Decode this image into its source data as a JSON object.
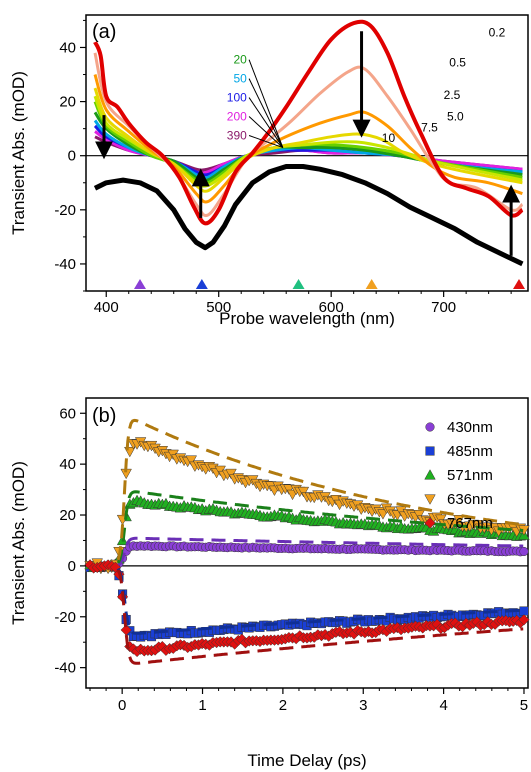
{
  "chart_data": [
    {
      "id": "a",
      "type": "line",
      "panel_label": "(a)",
      "xlabel": "Probe wavelength (nm)",
      "ylabel": "Transient Abs. (mOD)",
      "xlim": [
        382,
        775
      ],
      "ylim": [
        -50,
        52
      ],
      "xticks": [
        400,
        500,
        600,
        700
      ],
      "yticks": [
        -40,
        -20,
        0,
        20,
        40
      ],
      "zero_line": true,
      "steady_state_curve": {
        "color": "#000000",
        "points": [
          [
            390,
            -12
          ],
          [
            400,
            -10
          ],
          [
            415,
            -9
          ],
          [
            430,
            -10
          ],
          [
            445,
            -13
          ],
          [
            460,
            -20
          ],
          [
            470,
            -27
          ],
          [
            480,
            -32
          ],
          [
            488,
            -34
          ],
          [
            495,
            -32
          ],
          [
            505,
            -26
          ],
          [
            515,
            -18
          ],
          [
            530,
            -10
          ],
          [
            545,
            -6
          ],
          [
            560,
            -4
          ],
          [
            575,
            -4
          ],
          [
            590,
            -5
          ],
          [
            610,
            -7
          ],
          [
            630,
            -10
          ],
          [
            650,
            -14
          ],
          [
            670,
            -19
          ],
          [
            690,
            -23
          ],
          [
            710,
            -27
          ],
          [
            730,
            -32
          ],
          [
            750,
            -36
          ],
          [
            770,
            -40
          ]
        ]
      },
      "series": [
        {
          "name": "0.2",
          "color": "#e00000",
          "values": [
            [
              390,
              42
            ],
            [
              395,
              37
            ],
            [
              400,
              22
            ],
            [
              410,
              18
            ],
            [
              420,
              12
            ],
            [
              435,
              5
            ],
            [
              450,
              0
            ],
            [
              465,
              -8
            ],
            [
              478,
              -19
            ],
            [
              488,
              -25
            ],
            [
              500,
              -20
            ],
            [
              515,
              -6
            ],
            [
              530,
              1
            ],
            [
              545,
              9
            ],
            [
              560,
              18
            ],
            [
              580,
              31
            ],
            [
              600,
              43
            ],
            [
              620,
              49
            ],
            [
              635,
              48
            ],
            [
              650,
              38
            ],
            [
              665,
              22
            ],
            [
              680,
              8
            ],
            [
              700,
              -8
            ],
            [
              720,
              -12
            ],
            [
              740,
              -15
            ],
            [
              760,
              -22
            ],
            [
              770,
              -20
            ]
          ]
        },
        {
          "name": "0.5",
          "color": "#f4a58a",
          "values": [
            [
              390,
              38
            ],
            [
              400,
              20
            ],
            [
              420,
              11
            ],
            [
              440,
              3
            ],
            [
              460,
              -5
            ],
            [
              480,
              -18
            ],
            [
              490,
              -22
            ],
            [
              505,
              -14
            ],
            [
              525,
              -1
            ],
            [
              545,
              6
            ],
            [
              565,
              13
            ],
            [
              590,
              23
            ],
            [
              615,
              31
            ],
            [
              630,
              32
            ],
            [
              650,
              22
            ],
            [
              670,
              10
            ],
            [
              690,
              -3
            ],
            [
              705,
              -10
            ],
            [
              730,
              -12
            ],
            [
              760,
              -20
            ],
            [
              770,
              -18
            ]
          ]
        },
        {
          "name": "2.5",
          "color": "#ff9900",
          "values": [
            [
              390,
              30
            ],
            [
              400,
              17
            ],
            [
              420,
              9
            ],
            [
              440,
              2
            ],
            [
              460,
              -4
            ],
            [
              480,
              -14
            ],
            [
              490,
              -17
            ],
            [
              505,
              -11
            ],
            [
              525,
              -1
            ],
            [
              545,
              4
            ],
            [
              565,
              8
            ],
            [
              590,
              12
            ],
            [
              615,
              15
            ],
            [
              630,
              16
            ],
            [
              650,
              11
            ],
            [
              670,
              3
            ],
            [
              690,
              -4
            ],
            [
              710,
              -8
            ],
            [
              740,
              -10
            ],
            [
              770,
              -14
            ]
          ]
        },
        {
          "name": "5.0",
          "color": "#e6d800",
          "values": [
            [
              390,
              25
            ],
            [
              400,
              14
            ],
            [
              420,
              7
            ],
            [
              440,
              1
            ],
            [
              460,
              -3
            ],
            [
              480,
              -11
            ],
            [
              490,
              -13
            ],
            [
              505,
              -8
            ],
            [
              525,
              -1
            ],
            [
              550,
              3
            ],
            [
              575,
              5
            ],
            [
              600,
              7
            ],
            [
              625,
              8
            ],
            [
              645,
              6
            ],
            [
              665,
              1
            ],
            [
              690,
              -3
            ],
            [
              720,
              -6
            ],
            [
              770,
              -10
            ]
          ]
        },
        {
          "name": "7.5",
          "color": "#c8e600",
          "values": [
            [
              390,
              22
            ],
            [
              400,
              12
            ],
            [
              420,
              6
            ],
            [
              440,
              1
            ],
            [
              460,
              -3
            ],
            [
              480,
              -10
            ],
            [
              490,
              -11
            ],
            [
              505,
              -7
            ],
            [
              525,
              0
            ],
            [
              550,
              3
            ],
            [
              575,
              4
            ],
            [
              600,
              5
            ],
            [
              625,
              5
            ],
            [
              650,
              3
            ],
            [
              675,
              0
            ],
            [
              700,
              -3
            ],
            [
              770,
              -9
            ]
          ]
        },
        {
          "name": "10",
          "color": "#66d000",
          "values": [
            [
              390,
              20
            ],
            [
              400,
              11
            ],
            [
              420,
              5
            ],
            [
              440,
              0
            ],
            [
              460,
              -3
            ],
            [
              480,
              -9
            ],
            [
              490,
              -10
            ],
            [
              505,
              -6
            ],
            [
              525,
              0
            ],
            [
              550,
              3
            ],
            [
              575,
              4
            ],
            [
              600,
              4
            ],
            [
              630,
              3
            ],
            [
              660,
              1
            ],
            [
              690,
              -2
            ],
            [
              770,
              -8
            ]
          ]
        },
        {
          "name": "20",
          "color": "#1a9a1a",
          "values": [
            [
              390,
              16
            ],
            [
              400,
              10
            ],
            [
              420,
              4
            ],
            [
              440,
              0
            ],
            [
              460,
              -2
            ],
            [
              480,
              -8
            ],
            [
              490,
              -9
            ],
            [
              505,
              -5
            ],
            [
              525,
              0
            ],
            [
              550,
              3
            ],
            [
              575,
              3
            ],
            [
              600,
              3
            ],
            [
              630,
              2
            ],
            [
              660,
              0
            ],
            [
              700,
              -3
            ],
            [
              770,
              -7
            ]
          ]
        },
        {
          "name": "50",
          "color": "#00a6e6",
          "values": [
            [
              390,
              13
            ],
            [
              400,
              8
            ],
            [
              420,
              3
            ],
            [
              440,
              0
            ],
            [
              460,
              -2
            ],
            [
              480,
              -7
            ],
            [
              490,
              -8
            ],
            [
              505,
              -4
            ],
            [
              525,
              0
            ],
            [
              550,
              2
            ],
            [
              575,
              3
            ],
            [
              600,
              2
            ],
            [
              630,
              1
            ],
            [
              660,
              0
            ],
            [
              700,
              -3
            ],
            [
              770,
              -6
            ]
          ]
        },
        {
          "name": "100",
          "color": "#1a1ae6",
          "values": [
            [
              390,
              11
            ],
            [
              400,
              7
            ],
            [
              420,
              3
            ],
            [
              440,
              0
            ],
            [
              460,
              -2
            ],
            [
              480,
              -6
            ],
            [
              490,
              -7
            ],
            [
              505,
              -4
            ],
            [
              525,
              0
            ],
            [
              550,
              2
            ],
            [
              575,
              2
            ],
            [
              600,
              2
            ],
            [
              630,
              1
            ],
            [
              660,
              0
            ],
            [
              700,
              -3
            ],
            [
              770,
              -6
            ]
          ]
        },
        {
          "name": "200",
          "color": "#e020e0",
          "values": [
            [
              390,
              9
            ],
            [
              400,
              6
            ],
            [
              420,
              2
            ],
            [
              440,
              0
            ],
            [
              460,
              -2
            ],
            [
              480,
              -6
            ],
            [
              490,
              -6
            ],
            [
              505,
              -3
            ],
            [
              525,
              0
            ],
            [
              550,
              2
            ],
            [
              575,
              2
            ],
            [
              600,
              1
            ],
            [
              630,
              1
            ],
            [
              660,
              0
            ],
            [
              700,
              -2
            ],
            [
              770,
              -5
            ]
          ]
        },
        {
          "name": "390",
          "color": "#8a1a6a",
          "values": [
            [
              390,
              7
            ],
            [
              400,
              5
            ],
            [
              420,
              2
            ],
            [
              440,
              0
            ],
            [
              460,
              -2
            ],
            [
              480,
              -5
            ],
            [
              490,
              -5
            ],
            [
              505,
              -3
            ],
            [
              525,
              0
            ],
            [
              550,
              1
            ],
            [
              575,
              2
            ],
            [
              600,
              1
            ],
            [
              630,
              1
            ],
            [
              660,
              0
            ],
            [
              700,
              -2
            ],
            [
              770,
              -5
            ]
          ]
        }
      ],
      "time_labels_inline": [
        "0.2",
        "0.5",
        "2.5",
        "5.0",
        "7.5",
        "10"
      ],
      "time_labels_left": [
        "20",
        "50",
        "100",
        "200",
        "390"
      ],
      "marker_wavelengths": [
        {
          "x": 430,
          "color": "#8a3fd6"
        },
        {
          "x": 485,
          "color": "#1a3fd6"
        },
        {
          "x": 571,
          "color": "#20c080"
        },
        {
          "x": 636,
          "color": "#f0a020"
        },
        {
          "x": 767,
          "color": "#e01010"
        }
      ],
      "arrows": [
        {
          "x": 398,
          "direction": "down"
        },
        {
          "x": 484,
          "direction": "up"
        },
        {
          "x": 627,
          "direction": "down"
        },
        {
          "x": 760,
          "direction": "up"
        }
      ]
    },
    {
      "id": "b",
      "type": "scatter",
      "panel_label": "(b)",
      "xlabel": "Time Delay (ps)",
      "ylabel": "Transient Abs. (mOD)",
      "xlim": [
        -0.45,
        5.05
      ],
      "ylim": [
        -48,
        66
      ],
      "xticks": [
        0,
        1,
        2,
        3,
        4,
        5
      ],
      "yticks": [
        -40,
        -20,
        0,
        20,
        40,
        60
      ],
      "zero_line": true,
      "legend_position": "top-right",
      "series": [
        {
          "name": "430nm",
          "marker": "circle",
          "color": "#8a3fd6",
          "amplitude": 8,
          "decay_ps": 14.5,
          "fit_peak": 11
        },
        {
          "name": "485nm",
          "marker": "square",
          "color": "#1a3fd6",
          "amplitude": -28,
          "decay_ps": 11.4,
          "fit_peak": -27
        },
        {
          "name": "571nm",
          "marker": "triangle-up",
          "color": "#20b020",
          "amplitude": 26,
          "decay_ps": 6.5,
          "fit_peak": 30
        },
        {
          "name": "636nm",
          "marker": "triangle-down",
          "color": "#f0a020",
          "amplitude": 51,
          "decay_ps": 3.8,
          "fit_peak": 60
        },
        {
          "name": "767nm",
          "marker": "diamond",
          "color": "#e01010",
          "amplitude": -34,
          "decay_ps": 11,
          "fit_peak": -39
        }
      ]
    }
  ]
}
